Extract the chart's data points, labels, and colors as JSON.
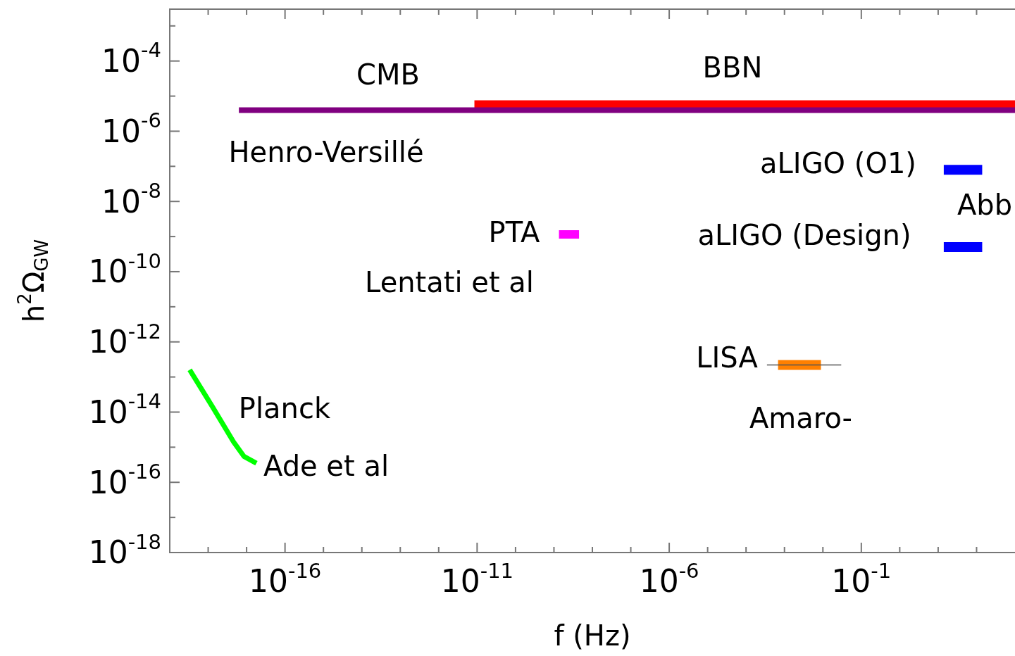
{
  "chart_data": {
    "type": "line",
    "xlabel": "f (Hz)",
    "ylabel": "h$^{2}$Ω$_{GW}$",
    "log": "xy",
    "grid": false,
    "legend": false,
    "marker": "none",
    "line_style": "solid",
    "xlim": [
      1e-19,
      1000.0
    ],
    "ylim": [
      1e-18,
      0.003
    ],
    "xticks": [
      {
        "value": 1e-18,
        "label": null
      },
      {
        "value": 1e-17,
        "label": null
      },
      {
        "value": 1e-16,
        "label": "10$^{-16}$"
      },
      {
        "value": 1e-15,
        "label": null
      },
      {
        "value": 1e-14,
        "label": null
      },
      {
        "value": 1e-13,
        "label": null
      },
      {
        "value": 1e-12,
        "label": null
      },
      {
        "value": 1e-11,
        "label": "10$^{-11}$"
      },
      {
        "value": 1e-10,
        "label": null
      },
      {
        "value": 1e-09,
        "label": null
      },
      {
        "value": 1e-08,
        "label": null
      },
      {
        "value": 1e-07,
        "label": null
      },
      {
        "value": 1e-06,
        "label": "10$^{-6}$"
      },
      {
        "value": 1e-05,
        "label": null
      },
      {
        "value": 0.0001,
        "label": null
      },
      {
        "value": 0.001,
        "label": null
      },
      {
        "value": 0.01,
        "label": null
      },
      {
        "value": 0.1,
        "label": "10$^{-1}$"
      },
      {
        "value": 1,
        "label": null
      },
      {
        "value": 10,
        "label": null
      },
      {
        "value": 100,
        "label": null
      }
    ],
    "yticks": [
      {
        "value": 1e-18,
        "label": "10$^{-18}$"
      },
      {
        "value": 1e-17,
        "label": null
      },
      {
        "value": 1e-16,
        "label": "10$^{-16}$"
      },
      {
        "value": 1e-15,
        "label": null
      },
      {
        "value": 1e-14,
        "label": "10$^{-14}$"
      },
      {
        "value": 1e-13,
        "label": null
      },
      {
        "value": 1e-12,
        "label": "10$^{-12}$"
      },
      {
        "value": 1e-11,
        "label": null
      },
      {
        "value": 1e-10,
        "label": "10$^{-10}$"
      },
      {
        "value": 1e-09,
        "label": null
      },
      {
        "value": 1e-08,
        "label": "10$^{-8}$"
      },
      {
        "value": 1e-07,
        "label": null
      },
      {
        "value": 1e-06,
        "label": "10$^{-6}$"
      },
      {
        "value": 1e-05,
        "label": null
      },
      {
        "value": 0.0001,
        "label": "10$^{-4}$"
      },
      {
        "value": 0.001,
        "label": null
      }
    ],
    "series": [
      {
        "color": "#800080",
        "x": [
          6.3e-18,
          1000.0
        ],
        "values": [
          4e-06,
          4e-06
        ]
      },
      {
        "color": "#ff0000",
        "x": [
          8.5e-12,
          1000.0
        ],
        "values": [
          5.5e-06,
          5.5e-06
        ]
      },
      {
        "color": "#ff00ff",
        "x": [
          1.35e-09,
          4.5e-09
        ],
        "values": [
          1.15e-09,
          1.15e-09
        ]
      },
      {
        "color": "#0000ff",
        "x": [
          14,
          140
        ],
        "values": [
          8e-08,
          8e-08
        ]
      },
      {
        "color": "#0000ff",
        "x": [
          14,
          140
        ],
        "values": [
          5e-10,
          5e-10
        ]
      },
      {
        "color": "#555555",
        "x": [
          0.00035,
          0.03
        ],
        "values": [
          2.2e-13,
          2.2e-13
        ]
      },
      {
        "color": "#ff8000",
        "x": [
          0.00068,
          0.0089
        ],
        "values": [
          2.2e-13,
          2.2e-13
        ]
      },
      {
        "color": "#00ff00",
        "x": [
          3.3e-19,
          1.3e-18,
          4.6e-18,
          8.5e-18,
          1.8e-17
        ],
        "values": [
          1.6e-13,
          1.4e-14,
          1.4e-15,
          5.5e-16,
          3.5e-16
        ]
      }
    ],
    "annotations": [
      "CMB",
      "BBN",
      "Henro-Versillé",
      "aLIGO (O1)",
      "Abb",
      "PTA",
      "aLIGO (Design)",
      "Lentati et al",
      "LISA",
      "Amaro-",
      "Planck",
      "Ade et al"
    ]
  }
}
